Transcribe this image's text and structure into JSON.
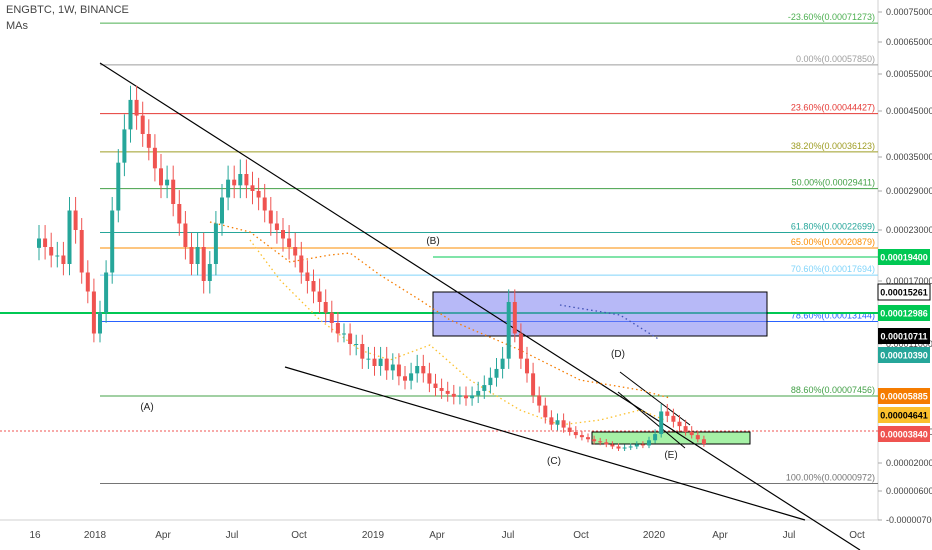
{
  "header": {
    "symbol_line": "ENGBTC, 1W, BINANCE",
    "indicator": "MAs"
  },
  "colors": {
    "up": "#26a69a",
    "down": "#ef5350",
    "wedge": "#000000",
    "ma_orange": "#f57c00",
    "ma_yellow": "#fbc02d",
    "ma_blue": "#3f51b5",
    "box_blue": "#7b7ff0",
    "box_green": "#90ee90"
  },
  "chart_data": {
    "type": "candlestick",
    "price_axis_ticks": [
      "0.00075000",
      "0.00065000",
      "0.00055000",
      "0.00045000",
      "0.00035000",
      "0.00029000",
      "0.00023000",
      "0.00017000",
      "0.00011000",
      "0.00005000",
      "0.00002000",
      "0.00000600",
      "-0.00000700"
    ],
    "time_axis_ticks": [
      "16",
      "2018",
      "Apr",
      "Jul",
      "Oct",
      "2019",
      "Apr",
      "Jul",
      "Oct",
      "2020",
      "Apr",
      "Jul",
      "Oct"
    ],
    "fib_levels": [
      {
        "label": "-23.60%(0.00071273)",
        "value": 0.00071273,
        "color": "#4caf50"
      },
      {
        "label": "0.00%(0.00057850)",
        "value": 0.0005785,
        "color": "#9e9e9e"
      },
      {
        "label": "23.60%(0.00044427)",
        "value": 0.00044427,
        "color": "#e53935"
      },
      {
        "label": "38.20%(0.00036123)",
        "value": 0.00036123,
        "color": "#9e9d24"
      },
      {
        "label": "50.00%(0.00029411)",
        "value": 0.00029411,
        "color": "#43a047"
      },
      {
        "label": "61.80%(0.00022699)",
        "value": 0.00022699,
        "color": "#26a69a"
      },
      {
        "label": "65.00%(0.00020879)",
        "value": 0.00020879,
        "color": "#fb8c00"
      },
      {
        "label": "70.60%(0.00017694)",
        "value": 0.00017694,
        "color": "#81d4fa"
      },
      {
        "label": "78.60%(0.00013144)",
        "value": 0.00013144,
        "color": "#2962ff"
      },
      {
        "label": "88.60%(0.00007456)",
        "value": 7.456e-05,
        "color": "#43a047"
      },
      {
        "label": "100.00%(0.00000972)",
        "value": 9.72e-06,
        "color": "#757575"
      }
    ],
    "price_tags": [
      {
        "label": "0.00019400",
        "bg": "#00c853",
        "fg": "#ffffff"
      },
      {
        "label": "0.00015261",
        "bg": "#ffffff",
        "fg": "#000000"
      },
      {
        "label": "0.00012986",
        "bg": "#00c853",
        "fg": "#ffffff"
      },
      {
        "label": "0.00010711",
        "bg": "#000000",
        "fg": "#ffffff"
      },
      {
        "label": "0.00010390",
        "bg": "#26a69a",
        "fg": "#ffffff"
      },
      {
        "label": "0.00005885",
        "bg": "#f57c00",
        "fg": "#ffffff"
      },
      {
        "label": "0.00004641",
        "bg": "#fbc02d",
        "fg": "#000000"
      },
      {
        "label": "0.00003840",
        "bg": "#ef5350",
        "fg": "#ffffff"
      }
    ],
    "wave_labels": [
      "(A)",
      "(B)",
      "(C)",
      "(D)",
      "(E)"
    ],
    "candles_close": [
      0.00022,
      0.00021,
      0.0002,
      0.0002,
      0.00019,
      0.00026,
      0.00023,
      0.00018,
      0.00016,
      0.00012,
      0.00014,
      0.00018,
      0.00026,
      0.00034,
      0.00041,
      0.00048,
      0.00044,
      0.0004,
      0.00037,
      0.00033,
      0.0003,
      0.00031,
      0.00027,
      0.00024,
      0.00021,
      0.00019,
      0.00021,
      0.00017,
      0.00019,
      0.00024,
      0.00028,
      0.00031,
      0.0003,
      0.00032,
      0.0003,
      0.00029,
      0.00028,
      0.00026,
      0.00024,
      0.00023,
      0.00022,
      0.00021,
      0.0002,
      0.00018,
      0.00017,
      0.00016,
      0.00015,
      0.00014,
      0.00013,
      0.00012,
      0.00012,
      0.00011,
      0.00011,
      0.0001,
      0.0001,
      9.5e-05,
      0.0001,
      9.2e-05,
      9.6e-05,
      8.8e-05,
      8.5e-05,
      9e-05,
      9.5e-05,
      9e-05,
      8.3e-05,
      8e-05,
      7.8e-05,
      7.6e-05,
      7.4e-05,
      7.5e-05,
      7.3e-05,
      7.5e-05,
      7.8e-05,
      8.2e-05,
      8.7e-05,
      9.3e-05,
      0.0001,
      0.00015,
      0.00012,
      0.0001,
      9e-05,
      7.5e-05,
      6.8e-05,
      6e-05,
      5.5e-05,
      5.8e-05,
      5.3e-05,
      5e-05,
      4.7e-05,
      4.5e-05,
      4.3e-05,
      4.1e-05,
      4e-05,
      3.8e-05,
      3.6e-05,
      3.4e-05,
      3.5e-05,
      3.6e-05,
      3.8e-05,
      3.7e-05,
      4.2e-05,
      4.8e-05,
      6.4e-05,
      6.1e-05,
      5.7e-05,
      5.4e-05,
      5e-05,
      4.7e-05,
      4.3e-05,
      3.84e-05
    ]
  }
}
